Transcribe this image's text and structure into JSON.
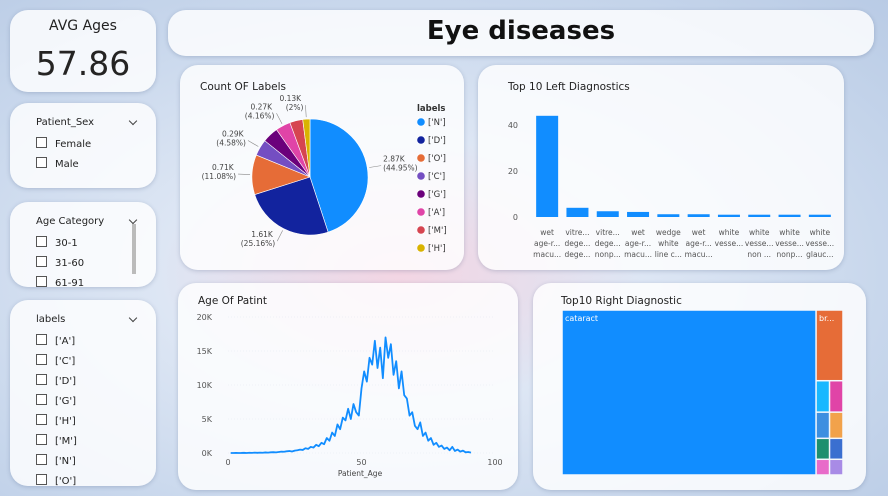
{
  "header": {
    "title": "Eye diseases"
  },
  "kpi": {
    "label": "AVG Ages",
    "value": 57.86
  },
  "slicers": [
    {
      "title": "Patient_Sex",
      "items": [
        "Female",
        "Male"
      ]
    },
    {
      "title": "Age Category",
      "items": [
        "30-1",
        "31-60",
        "61-91"
      ]
    },
    {
      "title": "labels",
      "items": [
        "['A']",
        "['C']",
        "['D']",
        "['G']",
        "['H']",
        "['M']",
        "['N']",
        "['O']"
      ]
    }
  ],
  "chart_data": [
    {
      "type": "pie",
      "title": "Count OF Labels",
      "legend_title": "labels",
      "categories": [
        "['N']",
        "['D']",
        "['O']",
        "['C']",
        "['G']",
        "['A']",
        "['M']",
        "['H']"
      ],
      "values": [
        2873,
        1608,
        708,
        293,
        284,
        266,
        232,
        128
      ],
      "value_labels": [
        "2.87K (44.95%)",
        "1.61K (25.16%)",
        "0.71K (11.08%)",
        "0.29K (4.58%)",
        null,
        "0.27K (4.16%)",
        null,
        "0.13K (2%)"
      ],
      "colors": [
        "#118DFF",
        "#12239E",
        "#E66C37",
        "#744EC2",
        "#6B007B",
        "#E044A7",
        "#D64550",
        "#D9B300"
      ]
    },
    {
      "type": "bar",
      "title": "Top 10 Left Diagnostics",
      "categories": [
        [
          "wet",
          "age-r...",
          "macu..."
        ],
        [
          "vitre...",
          "dege...",
          "dege..."
        ],
        [
          "vitre...",
          "dege...",
          "nonp..."
        ],
        [
          "wet",
          "age-r...",
          "macu..."
        ],
        [
          "wedge",
          "white",
          "line c..."
        ],
        [
          "wet",
          "age-r...",
          "macu..."
        ],
        [
          "white",
          "vesse..."
        ],
        [
          "white",
          "vesse...",
          "non ..."
        ],
        [
          "white",
          "vesse...",
          "nonp..."
        ],
        [
          "white",
          "vesse...",
          "glauc..."
        ]
      ],
      "values": [
        44,
        4,
        2.5,
        2.2,
        1.2,
        1.2,
        1,
        1,
        1,
        1
      ],
      "color": "#118DFF",
      "ylim": [
        0,
        45
      ],
      "yticks": [
        0,
        20,
        40
      ]
    },
    {
      "type": "line",
      "title": "Age Of Patint",
      "x_label": "Patient_Age",
      "color": "#118DFF",
      "x": [
        1,
        2,
        3,
        4,
        5,
        6,
        7,
        8,
        9,
        10,
        11,
        12,
        13,
        14,
        15,
        16,
        17,
        18,
        19,
        20,
        21,
        22,
        23,
        24,
        25,
        26,
        27,
        28,
        29,
        30,
        31,
        32,
        33,
        34,
        35,
        36,
        37,
        38,
        39,
        40,
        41,
        42,
        43,
        44,
        45,
        46,
        47,
        48,
        49,
        50,
        51,
        52,
        53,
        54,
        55,
        56,
        57,
        58,
        59,
        60,
        61,
        62,
        63,
        64,
        65,
        66,
        67,
        68,
        69,
        70,
        71,
        72,
        73,
        74,
        75,
        76,
        77,
        78,
        79,
        80,
        81,
        82,
        83,
        84,
        85,
        86,
        87,
        88,
        89,
        90,
        91
      ],
      "values": [
        0,
        0,
        20,
        0,
        10,
        30,
        0,
        40,
        20,
        50,
        30,
        60,
        40,
        80,
        60,
        100,
        120,
        90,
        150,
        200,
        180,
        250,
        300,
        220,
        350,
        400,
        500,
        450,
        700,
        600,
        900,
        800,
        1200,
        1000,
        1500,
        1300,
        2200,
        1800,
        3000,
        2500,
        4200,
        3500,
        5200,
        4800,
        6500,
        5000,
        7200,
        6000,
        5500,
        9500,
        12000,
        10500,
        14000,
        13000,
        16500,
        12500,
        15500,
        11000,
        17000,
        14000,
        16000,
        11500,
        13500,
        9500,
        12000,
        8500,
        8000,
        5500,
        6000,
        4000,
        3500,
        4500,
        2500,
        3000,
        1800,
        2200,
        1200,
        1500,
        900,
        1100,
        600,
        800,
        400,
        900,
        300,
        500,
        200,
        350,
        100,
        150,
        50
      ],
      "xlim": [
        0,
        100
      ],
      "xticks": [
        0,
        50,
        100
      ],
      "ylim": [
        0,
        20000
      ],
      "yticks": [
        {
          "value": 0,
          "label": "0K"
        },
        {
          "value": 5000,
          "label": "5K"
        },
        {
          "value": 10000,
          "label": "10K"
        },
        {
          "value": 15000,
          "label": "15K"
        },
        {
          "value": 20000,
          "label": "20K"
        }
      ]
    },
    {
      "type": "treemap",
      "title": "Top10 Right Diagnostic",
      "categories": [
        "cataract",
        "br...",
        null,
        null,
        null,
        null,
        null,
        null,
        null,
        null
      ],
      "values": [
        594,
        27,
        6,
        6,
        5,
        5,
        4,
        4,
        3,
        3
      ],
      "colors": [
        "#118DFF",
        "#E66C37",
        "#19B8FF",
        "#E044A7",
        "#3E8FE0",
        "#F2A24B",
        "#1D8F6E",
        "#3A6FD0",
        "#E86BC9",
        "#A88BE6"
      ]
    }
  ]
}
